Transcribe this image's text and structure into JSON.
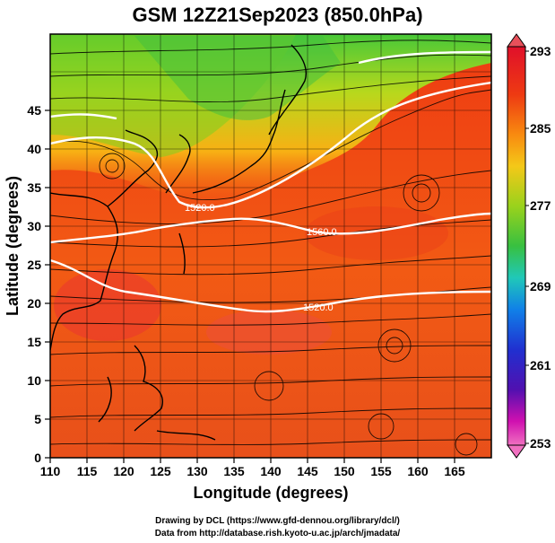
{
  "title": "GSM 12Z21Sep2023 (850.0hPa)",
  "x_axis": {
    "label": "Longitude (degrees)",
    "ticks": [
      "110",
      "115",
      "120",
      "125",
      "130",
      "135",
      "140",
      "145",
      "150",
      "155",
      "160",
      "165"
    ]
  },
  "y_axis": {
    "label": "Latitude  (degrees)",
    "ticks": [
      "0",
      "5",
      "10",
      "15",
      "20",
      "25",
      "30",
      "35",
      "40",
      "45"
    ]
  },
  "colorbar": {
    "labels": [
      "293",
      "285",
      "277",
      "269",
      "261",
      "253"
    ],
    "colors": [
      "#e0102a",
      "#ee3a12",
      "#f88a10",
      "#f4c818",
      "#9ad21c",
      "#38c040",
      "#20c8b8",
      "#1080e8",
      "#2030d0",
      "#5010b0",
      "#d010b0",
      "#f070c0"
    ]
  },
  "contours": [
    {
      "label": "1520.0"
    },
    {
      "label": "1560.0"
    },
    {
      "label": "1520.0"
    }
  ],
  "credits": {
    "line1": "Drawing by DCL (https://www.gfd-dennou.org/library/dcl/)",
    "line2": "Data from http://database.rish.kyoto-u.ac.jp/arch/jmadata/"
  }
}
